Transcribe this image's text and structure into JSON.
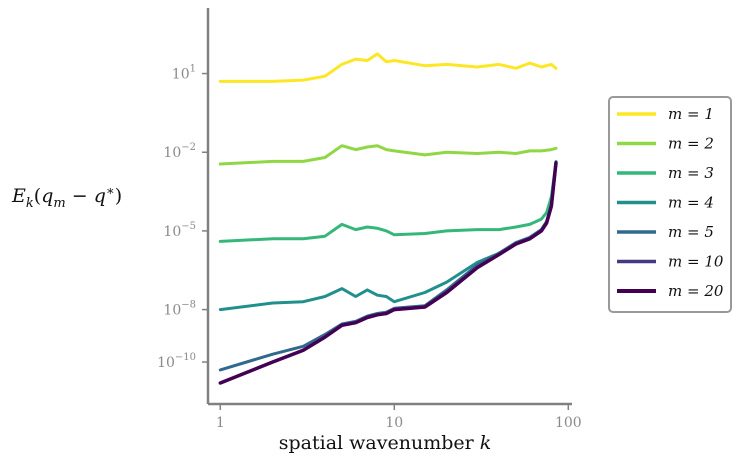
{
  "chart_data": {
    "type": "line",
    "title": "",
    "xlabel": "spatial wavenumber k",
    "ylabel": "E_k(q_m − q*)",
    "xscale": "log",
    "yscale": "log",
    "xlim": [
      0.85,
      105
    ],
    "ylim_log10": [
      -11.6,
      3.5
    ],
    "x_ticks": [
      {
        "value": 1,
        "label": "1"
      },
      {
        "value": 10,
        "label": "10"
      },
      {
        "value": 100,
        "label": "100"
      }
    ],
    "y_ticks": [
      {
        "value": 10,
        "label": "10^1"
      },
      {
        "value": 0.01,
        "label": "10^-2"
      },
      {
        "value": 1e-05,
        "label": "10^-5"
      },
      {
        "value": 1e-08,
        "label": "10^-8"
      },
      {
        "value": 1e-10,
        "label": "10^-10"
      }
    ],
    "grid": false,
    "legend_position": "right",
    "series": [
      {
        "name": "m = 1",
        "color": "#fde725",
        "x": [
          1,
          2,
          3,
          4,
          5,
          6,
          7,
          8,
          9,
          10,
          15,
          20,
          30,
          40,
          50,
          60,
          70,
          80,
          85
        ],
        "y_log10": [
          0.7,
          0.7,
          0.75,
          0.9,
          1.35,
          1.55,
          1.5,
          1.75,
          1.45,
          1.5,
          1.3,
          1.35,
          1.25,
          1.35,
          1.2,
          1.4,
          1.25,
          1.35,
          1.2
        ]
      },
      {
        "name": "m = 2",
        "color": "#8fd744",
        "x": [
          1,
          2,
          3,
          4,
          5,
          6,
          7,
          8,
          9,
          10,
          15,
          20,
          30,
          40,
          50,
          60,
          70,
          80,
          85
        ],
        "y_log10": [
          -2.45,
          -2.35,
          -2.35,
          -2.2,
          -1.75,
          -1.9,
          -1.8,
          -1.75,
          -1.9,
          -1.95,
          -2.1,
          -2.0,
          -2.05,
          -2.0,
          -2.05,
          -1.95,
          -1.95,
          -1.9,
          -1.85
        ]
      },
      {
        "name": "m = 3",
        "color": "#35b779",
        "x": [
          1,
          2,
          3,
          4,
          5,
          6,
          7,
          8,
          9,
          10,
          15,
          20,
          30,
          40,
          50,
          60,
          70,
          75,
          80,
          85
        ],
        "y_log10": [
          -5.4,
          -5.3,
          -5.3,
          -5.2,
          -4.75,
          -4.95,
          -4.85,
          -4.9,
          -5.0,
          -5.15,
          -5.1,
          -5.0,
          -4.95,
          -4.95,
          -4.85,
          -4.75,
          -4.55,
          -4.3,
          -3.7,
          -2.35
        ]
      },
      {
        "name": "m = 4",
        "color": "#21908d",
        "x": [
          1,
          2,
          3,
          4,
          5,
          6,
          7,
          8,
          9,
          10,
          15,
          20,
          30,
          40,
          50,
          60,
          70,
          75,
          80,
          85
        ],
        "y_log10": [
          -8.0,
          -7.75,
          -7.7,
          -7.5,
          -7.2,
          -7.5,
          -7.25,
          -7.45,
          -7.5,
          -7.7,
          -7.35,
          -6.95,
          -6.2,
          -5.85,
          -5.45,
          -5.25,
          -4.95,
          -4.65,
          -4.0,
          -2.4
        ]
      },
      {
        "name": "m = 5",
        "color": "#31688e",
        "x": [
          1,
          2,
          3,
          4,
          5,
          6,
          7,
          8,
          9,
          10,
          15,
          20,
          30,
          40,
          50,
          60,
          70,
          75,
          80,
          85
        ],
        "y_log10": [
          -10.3,
          -9.7,
          -9.4,
          -8.95,
          -8.55,
          -8.45,
          -8.25,
          -8.15,
          -8.1,
          -7.95,
          -7.85,
          -7.25,
          -6.3,
          -5.85,
          -5.45,
          -5.25,
          -4.95,
          -4.65,
          -4.0,
          -2.4
        ]
      },
      {
        "name": "m = 10",
        "color": "#443983",
        "x": [
          1,
          2,
          3,
          4,
          5,
          6,
          7,
          8,
          9,
          10,
          15,
          20,
          30,
          40,
          50,
          60,
          70,
          75,
          80,
          85
        ],
        "y_log10": [
          -10.8,
          -10.0,
          -9.55,
          -9.05,
          -8.6,
          -8.5,
          -8.3,
          -8.2,
          -8.15,
          -8.0,
          -7.9,
          -7.35,
          -6.4,
          -5.9,
          -5.5,
          -5.3,
          -5.0,
          -4.7,
          -4.05,
          -2.4
        ]
      },
      {
        "name": "m = 20",
        "color": "#440154",
        "x": [
          1,
          2,
          3,
          4,
          5,
          6,
          7,
          8,
          9,
          10,
          15,
          20,
          30,
          40,
          50,
          60,
          70,
          75,
          80,
          85
        ],
        "y_log10": [
          -10.8,
          -10.0,
          -9.55,
          -9.05,
          -8.6,
          -8.5,
          -8.3,
          -8.2,
          -8.15,
          -8.0,
          -7.9,
          -7.35,
          -6.4,
          -5.9,
          -5.5,
          -5.3,
          -5.0,
          -4.7,
          -4.05,
          -2.4
        ]
      }
    ]
  }
}
